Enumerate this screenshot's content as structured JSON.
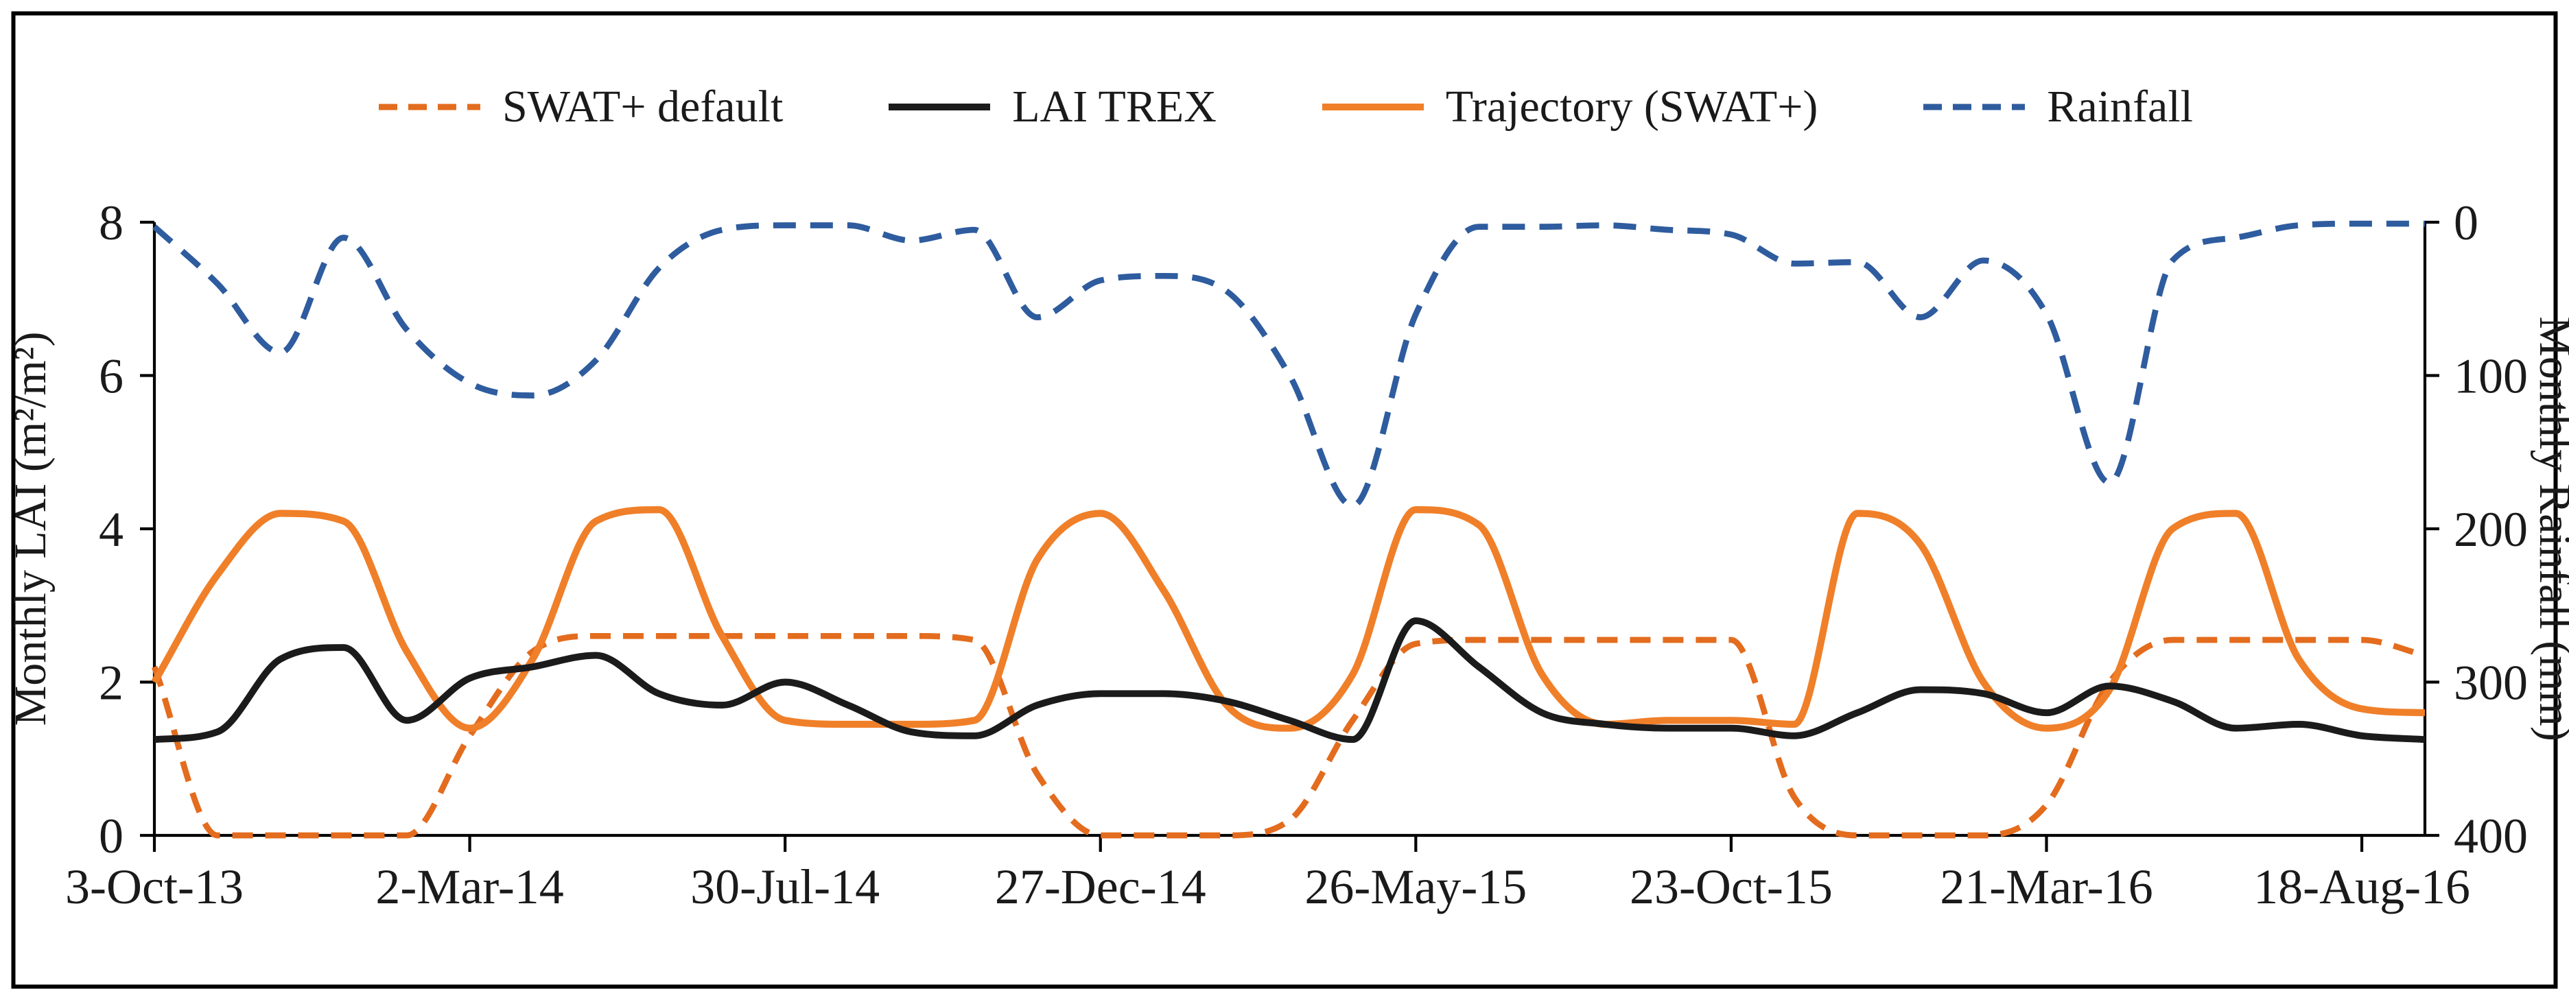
{
  "chart_data": {
    "type": "line",
    "title": "",
    "x_frequency": "monthly",
    "n_points": 37,
    "x_tick_labels": [
      "3-Oct-13",
      "2-Mar-14",
      "30-Jul-14",
      "27-Dec-14",
      "26-May-15",
      "23-Oct-15",
      "21-Mar-16",
      "18-Aug-16"
    ],
    "x_tick_indices": [
      0,
      5,
      10,
      15,
      20,
      25,
      30,
      35
    ],
    "left_axis": {
      "label": "Monthly LAI (m²/m²)",
      "min": 0,
      "max": 8,
      "ticks": [
        0,
        2,
        4,
        6,
        8
      ]
    },
    "right_axis": {
      "label": "Monthly Rainfall (mm)",
      "min": 0,
      "max": 400,
      "ticks": [
        0,
        100,
        200,
        300,
        400
      ],
      "inverted": true
    },
    "grid": false,
    "legend_position": "top",
    "series": [
      {
        "name": "SWAT+ default",
        "axis": "left",
        "style": "dashed",
        "color": "#E36C1E",
        "values": [
          2.2,
          0,
          0,
          0,
          0,
          1.3,
          2.4,
          2.6,
          2.6,
          2.6,
          2.6,
          2.6,
          2.6,
          2.55,
          0.8,
          0,
          0,
          0,
          0.2,
          1.5,
          2.5,
          2.55,
          2.55,
          2.55,
          2.55,
          2.55,
          0.5,
          0,
          0,
          0,
          0.4,
          2.0,
          2.55,
          2.55,
          2.55,
          2.55,
          2.35
        ]
      },
      {
        "name": "LAI TREX",
        "axis": "left",
        "style": "solid",
        "color": "#1b1b1b",
        "values": [
          1.25,
          1.35,
          2.3,
          2.45,
          1.5,
          2.05,
          2.2,
          2.35,
          1.85,
          1.7,
          2.0,
          1.7,
          1.35,
          1.3,
          1.7,
          1.85,
          1.85,
          1.75,
          1.5,
          1.25,
          2.8,
          2.2,
          1.6,
          1.45,
          1.4,
          1.4,
          1.3,
          1.6,
          1.9,
          1.85,
          1.6,
          1.95,
          1.75,
          1.4,
          1.45,
          1.3,
          1.25
        ]
      },
      {
        "name": "Trajectory (SWAT+)",
        "axis": "left",
        "style": "solid",
        "color": "#F07F29",
        "values": [
          2.0,
          3.4,
          4.2,
          4.1,
          2.4,
          1.4,
          2.3,
          4.1,
          4.25,
          2.6,
          1.5,
          1.45,
          1.45,
          1.5,
          3.6,
          4.2,
          3.2,
          1.7,
          1.4,
          2.1,
          4.25,
          4.05,
          2.1,
          1.45,
          1.5,
          1.5,
          1.45,
          4.2,
          3.8,
          2.0,
          1.4,
          1.9,
          4.0,
          4.2,
          2.3,
          1.65,
          1.6
        ]
      },
      {
        "name": "Rainfall",
        "axis": "right",
        "style": "dashed",
        "color": "#2E5C9E",
        "values": [
          3,
          40,
          85,
          10,
          70,
          105,
          113,
          90,
          30,
          5,
          2,
          2,
          12,
          5,
          62,
          38,
          35,
          45,
          100,
          185,
          60,
          3,
          3,
          2,
          5,
          8,
          27,
          26,
          62,
          25,
          60,
          170,
          25,
          10,
          2,
          1,
          1
        ]
      }
    ]
  }
}
